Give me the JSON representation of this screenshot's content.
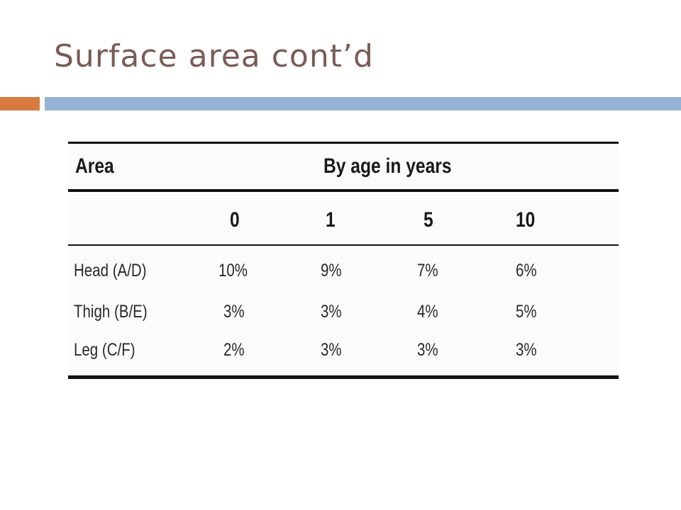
{
  "slide": {
    "title": "Surface area cont’d",
    "title_color": "#7a5c55",
    "accent_colors": {
      "orange": "#d97b3f",
      "blue": "#95b3d7"
    }
  },
  "table": {
    "header_area": "Area",
    "header_by_age": "By age in years",
    "ages": [
      "0",
      "1",
      "5",
      "10"
    ],
    "rows": [
      {
        "area": "Head (A/D)",
        "values": [
          "10%",
          "9%",
          "7%",
          "6%"
        ]
      },
      {
        "area": "Thigh (B/E)",
        "values": [
          "3%",
          "3%",
          "4%",
          "5%"
        ]
      },
      {
        "area": "Leg (C/F)",
        "values": [
          "2%",
          "3%",
          "3%",
          "3%"
        ]
      }
    ]
  }
}
